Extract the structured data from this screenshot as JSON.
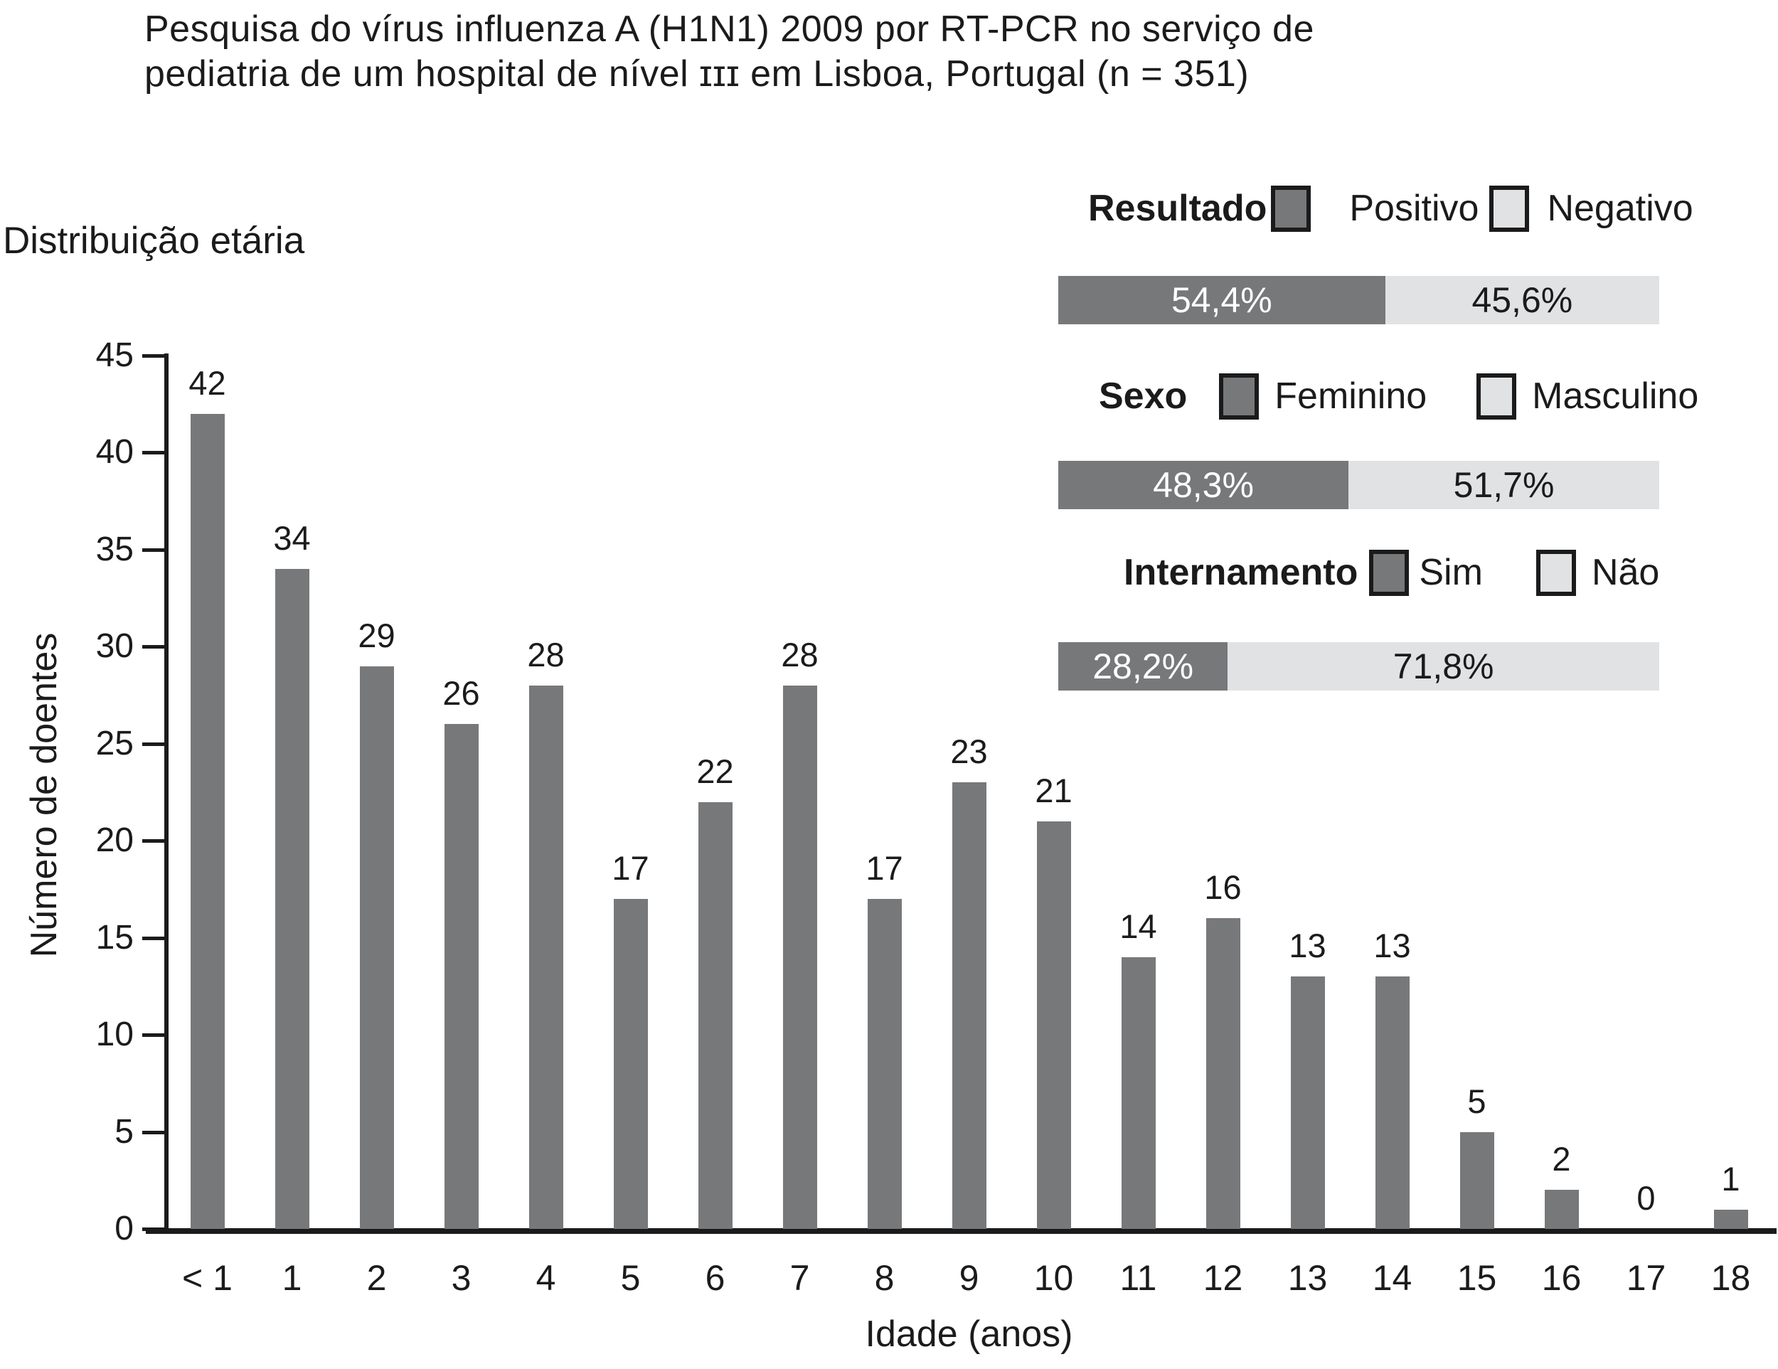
{
  "figure": {
    "title_line1": "Pesquisa do vírus influenza A (H1N1) 2009 por RT-PCR no serviço de",
    "title_line2": "pediatria de um hospital de nível ɪɪɪ em Lisboa, Portugal (n = 351)",
    "section_label": "Distribuição etária"
  },
  "legend": {
    "groups": [
      {
        "label": "Resultado",
        "items": [
          {
            "name": "Positivo",
            "swatch": "dark-gray"
          },
          {
            "name": "Negativo",
            "swatch": "light-gray"
          }
        ],
        "segments": [
          {
            "text": "54,4%",
            "fraction": 54.4,
            "color": "dark-gray"
          },
          {
            "text": "45,6%",
            "fraction": 45.6,
            "color": "light-gray"
          }
        ]
      },
      {
        "label": "Sexo",
        "items": [
          {
            "name": "Feminino",
            "swatch": "dark-gray"
          },
          {
            "name": "Masculino",
            "swatch": "light-gray"
          }
        ],
        "segments": [
          {
            "text": "48,3%",
            "fraction": 48.3,
            "color": "dark-gray"
          },
          {
            "text": "51,7%",
            "fraction": 51.7,
            "color": "light-gray"
          }
        ]
      },
      {
        "label": "Internamento",
        "items": [
          {
            "name": "Sim",
            "swatch": "dark-gray"
          },
          {
            "name": "Não",
            "swatch": "light-gray"
          }
        ],
        "segments": [
          {
            "text": "28,2%",
            "fraction": 28.2,
            "color": "dark-gray"
          },
          {
            "text": "71,8%",
            "fraction": 71.8,
            "color": "light-gray"
          }
        ]
      }
    ]
  },
  "chart_data": {
    "type": "bar",
    "title": "Distribuição etária",
    "categories": [
      "< 1",
      "1",
      "2",
      "3",
      "4",
      "5",
      "6",
      "7",
      "8",
      "9",
      "10",
      "11",
      "12",
      "13",
      "14",
      "15",
      "16",
      "17",
      "18"
    ],
    "values": [
      42,
      34,
      29,
      26,
      28,
      17,
      22,
      28,
      17,
      23,
      21,
      14,
      16,
      13,
      13,
      5,
      2,
      0,
      1
    ],
    "xlabel": "Idade (anos)",
    "ylabel": "Número de doentes",
    "ylim": [
      0,
      45
    ],
    "yticks": [
      0,
      5,
      10,
      15,
      20,
      25,
      30,
      35,
      40,
      45
    ],
    "value_labels_above_bars": true,
    "grid": false,
    "legend_position": "top-right",
    "bar_color": "#77787a"
  },
  "colors": {
    "dark_gray": "#77787a",
    "light_gray": "#e1e2e3",
    "ink": "#1b1b1b",
    "background": "#ffffff"
  }
}
